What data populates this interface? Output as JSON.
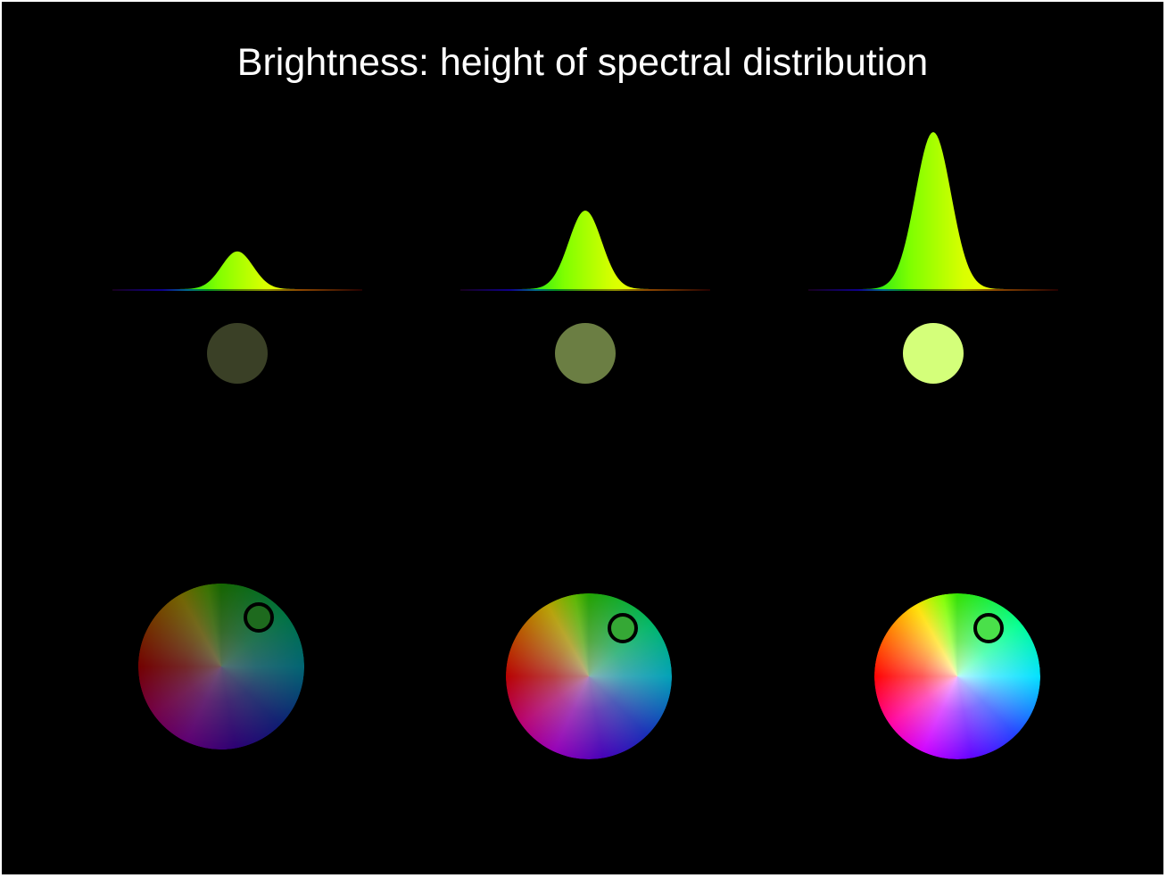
{
  "title": "Brightness: height of spectral distribution",
  "colors": {
    "background": "#000000",
    "title_text": "#ffffff",
    "marker_ring": "#000000"
  },
  "spectrum_colors": [
    "#2a0033",
    "#1a00ff",
    "#00c0ff",
    "#00ff40",
    "#a0ff00",
    "#ffff00",
    "#ff8000",
    "#400000"
  ],
  "panels": [
    {
      "peak_relative_height": 0.24,
      "perceived_color": "#3a4026",
      "wheel_darkness": 0.55,
      "marker_hue_color": "#1e6a1e"
    },
    {
      "peak_relative_height": 0.5,
      "perceived_color": "#6b7e43",
      "wheel_darkness": 0.28,
      "marker_hue_color": "#35a835"
    },
    {
      "peak_relative_height": 1.0,
      "perceived_color": "#d4ff7a",
      "wheel_darkness": 0.0,
      "marker_hue_color": "#4ae04a"
    }
  ]
}
